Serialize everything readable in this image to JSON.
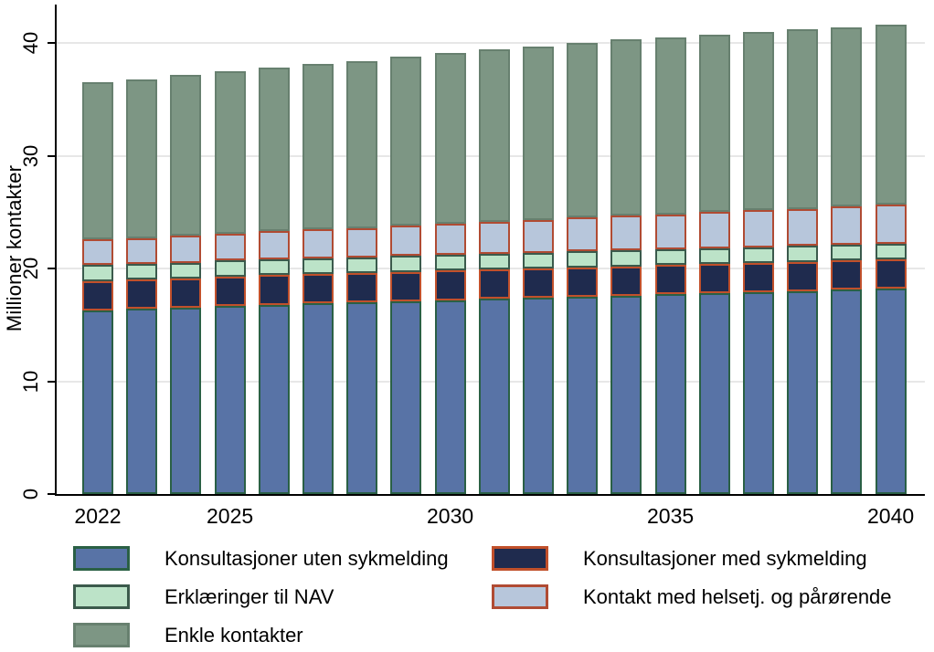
{
  "chart_data": {
    "type": "bar",
    "stacked": true,
    "title": "",
    "xlabel": "",
    "ylabel": "Millioner kontakter",
    "ylim": [
      0,
      42
    ],
    "yticks": [
      "0",
      "10",
      "20",
      "30",
      "40"
    ],
    "x_tick_years": [
      "2022",
      "2025",
      "2030",
      "2035",
      "2040"
    ],
    "grid": true,
    "legend_position": "bottom",
    "legend_columns": 2,
    "gridline_color": "#e7e7e7",
    "axis_color": "#000000",
    "categories": [
      "2022",
      "2023",
      "2024",
      "2025",
      "2026",
      "2027",
      "2028",
      "2029",
      "2030",
      "2031",
      "2032",
      "2033",
      "2034",
      "2035",
      "2036",
      "2037",
      "2038",
      "2039",
      "2040"
    ],
    "series": [
      {
        "name": "Konsultasjoner uten sykmelding",
        "fill": "#5873a6",
        "stroke": "#2a6045",
        "values": [
          16.3,
          16.4,
          16.5,
          16.7,
          16.8,
          16.9,
          17.0,
          17.1,
          17.2,
          17.3,
          17.4,
          17.5,
          17.6,
          17.7,
          17.8,
          17.9,
          18.0,
          18.1,
          18.2
        ]
      },
      {
        "name": "Konsultasjoner med sykmelding",
        "fill": "#1f2b4e",
        "stroke": "#c1502b",
        "values": [
          2.6,
          2.6,
          2.6,
          2.6,
          2.6,
          2.6,
          2.6,
          2.6,
          2.6,
          2.6,
          2.6,
          2.6,
          2.6,
          2.6,
          2.6,
          2.6,
          2.6,
          2.6,
          2.6
        ]
      },
      {
        "name": "Erklæringer til NAV",
        "fill": "#bce3c8",
        "stroke": "#3b5a4c",
        "values": [
          1.4,
          1.4,
          1.4,
          1.4,
          1.4,
          1.4,
          1.4,
          1.4,
          1.4,
          1.4,
          1.4,
          1.4,
          1.4,
          1.4,
          1.4,
          1.4,
          1.4,
          1.4,
          1.4
        ]
      },
      {
        "name": "Kontakt med helsetj. og pårørende",
        "fill": "#b7c6db",
        "stroke": "#b04b33",
        "values": [
          2.3,
          2.3,
          2.4,
          2.4,
          2.5,
          2.6,
          2.6,
          2.7,
          2.8,
          2.8,
          2.9,
          3.0,
          3.1,
          3.1,
          3.2,
          3.3,
          3.3,
          3.4,
          3.5
        ]
      },
      {
        "name": "Enkle kontakter",
        "fill": "#7d9684",
        "stroke": "#67806f",
        "values": [
          13.9,
          14.1,
          14.3,
          14.4,
          14.5,
          14.6,
          14.8,
          15.0,
          15.1,
          15.3,
          15.4,
          15.5,
          15.6,
          15.7,
          15.7,
          15.8,
          15.9,
          15.9,
          15.9
        ]
      }
    ]
  }
}
